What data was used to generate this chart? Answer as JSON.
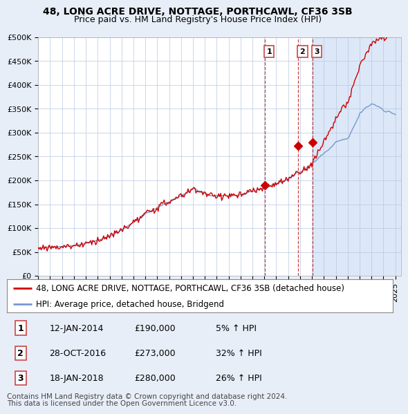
{
  "title": "48, LONG ACRE DRIVE, NOTTAGE, PORTHCAWL, CF36 3SB",
  "subtitle": "Price paid vs. HM Land Registry's House Price Index (HPI)",
  "ylim": [
    0,
    500000
  ],
  "yticks": [
    0,
    50000,
    100000,
    150000,
    200000,
    250000,
    300000,
    350000,
    400000,
    450000,
    500000
  ],
  "ytick_labels": [
    "£0",
    "£50K",
    "£100K",
    "£150K",
    "£200K",
    "£250K",
    "£300K",
    "£350K",
    "£400K",
    "£450K",
    "£500K"
  ],
  "xlim_start": 1995.0,
  "xlim_end": 2025.5,
  "background_color": "#e8eef8",
  "plot_bg_color": "#dce6f5",
  "plot_pre_bg_color": "#ffffff",
  "red_color": "#cc0000",
  "blue_color": "#7799cc",
  "dashed_color": "#cc4444",
  "sale_dates": [
    2014.03,
    2016.83,
    2018.04
  ],
  "sale_prices": [
    190000,
    273000,
    280000
  ],
  "sale_labels": [
    "1",
    "2",
    "3"
  ],
  "legend_line1": "48, LONG ACRE DRIVE, NOTTAGE, PORTHCAWL, CF36 3SB (detached house)",
  "legend_line2": "HPI: Average price, detached house, Bridgend",
  "table_rows": [
    [
      "1",
      "12-JAN-2014",
      "£190,000",
      "5% ↑ HPI"
    ],
    [
      "2",
      "28-OCT-2016",
      "£273,000",
      "32% ↑ HPI"
    ],
    [
      "3",
      "18-JAN-2018",
      "£280,000",
      "26% ↑ HPI"
    ]
  ],
  "footer": "Contains HM Land Registry data © Crown copyright and database right 2024.\nThis data is licensed under the Open Government Licence v3.0.",
  "title_fontsize": 10,
  "subtitle_fontsize": 9,
  "tick_fontsize": 8,
  "legend_fontsize": 9
}
